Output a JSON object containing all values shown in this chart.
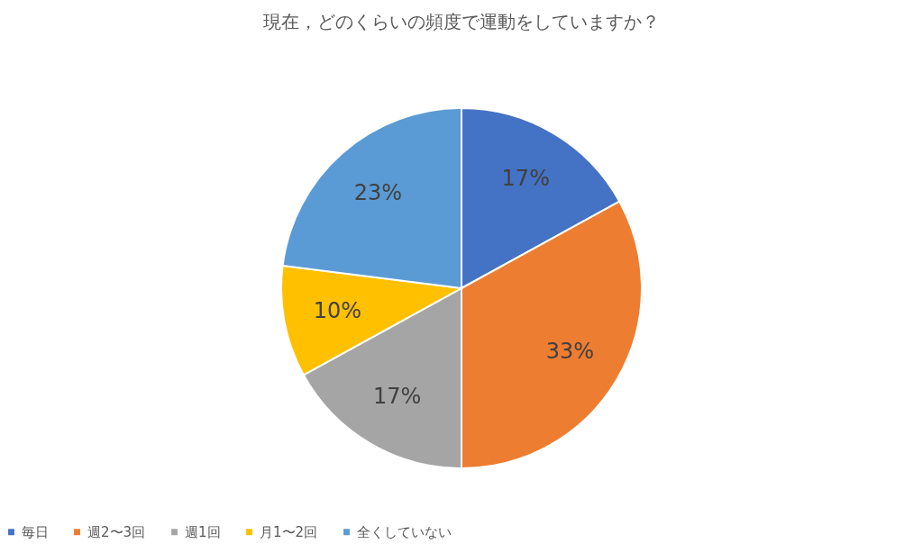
{
  "chart_data": {
    "type": "pie",
    "title": "現在，どのくらいの頻度で運動をしていますか？",
    "categories": [
      "毎日",
      "週2〜3回",
      "週1回",
      "月1〜2回",
      "全くしていない"
    ],
    "values": [
      17,
      33,
      17,
      10,
      23
    ],
    "value_labels": [
      "17%",
      "33%",
      "17%",
      "10%",
      "23%"
    ],
    "colors": [
      "#4472c4",
      "#ed7d31",
      "#a5a5a5",
      "#ffc000",
      "#5b9bd5"
    ],
    "legend": "bottom"
  }
}
